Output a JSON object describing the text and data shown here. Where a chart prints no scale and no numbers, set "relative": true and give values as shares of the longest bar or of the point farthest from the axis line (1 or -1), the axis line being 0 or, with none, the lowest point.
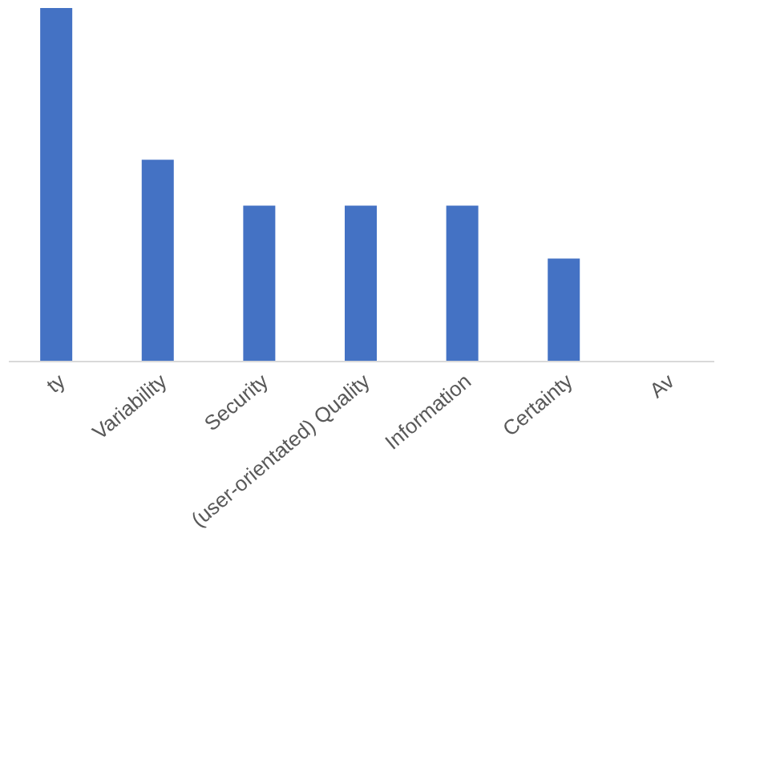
{
  "chart_data": {
    "type": "bar",
    "relative": true,
    "categories": [
      "ty",
      "Variability",
      "Security",
      "(user-orientated) Quality",
      "Information",
      "Certainty",
      "Av"
    ],
    "values": [
      1,
      0.57,
      0.44,
      0.44,
      0.44,
      0.29,
      null
    ],
    "color": "#4472c4",
    "grid": false
  }
}
